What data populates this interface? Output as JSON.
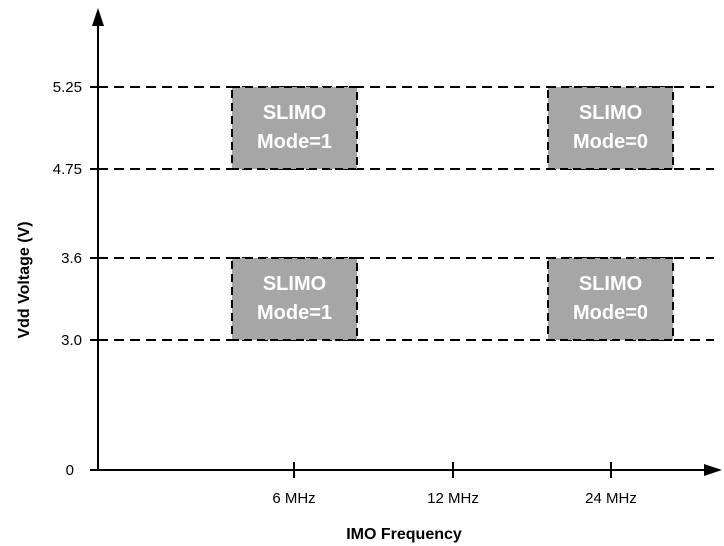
{
  "colors": {
    "axis": "#000000",
    "region_fill": "#a6a6a6",
    "region_text": "#ffffff",
    "guide_line": "#000000"
  },
  "diagram": {
    "y_axis_title": "Vdd Voltage (V)",
    "x_axis_title": "IMO Frequency",
    "y_ticks": [
      {
        "value": 0,
        "label": "0"
      },
      {
        "value": 3.0,
        "label": "3.0"
      },
      {
        "value": 3.6,
        "label": "3.6"
      },
      {
        "value": 4.75,
        "label": "4.75"
      },
      {
        "value": 5.25,
        "label": "5.25"
      }
    ],
    "x_ticks": [
      {
        "label": "6 MHz"
      },
      {
        "label": "12 MHz"
      },
      {
        "label": "24 MHz"
      }
    ],
    "regions": [
      {
        "frequency": "6 MHz",
        "vmin": 4.75,
        "vmax": 5.25,
        "line1": "SLIMO",
        "line2": "Mode=1"
      },
      {
        "frequency": "24 MHz",
        "vmin": 4.75,
        "vmax": 5.25,
        "line1": "SLIMO",
        "line2": "Mode=0"
      },
      {
        "frequency": "6 MHz",
        "vmin": 3.0,
        "vmax": 3.6,
        "line1": "SLIMO",
        "line2": "Mode=1"
      },
      {
        "frequency": "24 MHz",
        "vmin": 3.0,
        "vmax": 3.6,
        "line1": "SLIMO",
        "line2": "Mode=0"
      }
    ]
  }
}
